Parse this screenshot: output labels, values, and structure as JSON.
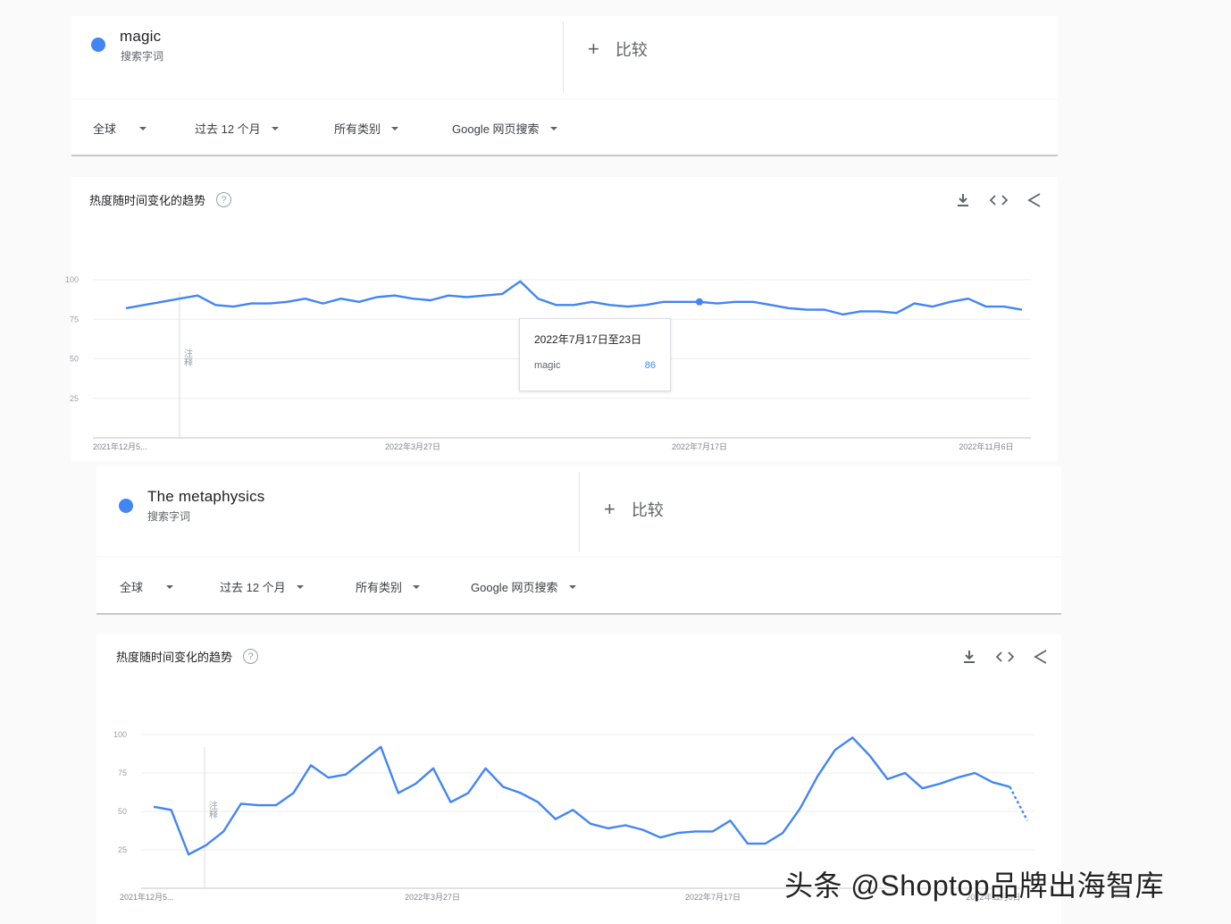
{
  "panels": [
    {
      "term": {
        "name": "magic",
        "sub": "搜索字词"
      },
      "compare": {
        "plus": "+",
        "label": "比较"
      },
      "filters": [
        {
          "label": "全球"
        },
        {
          "label": "过去 12 个月"
        },
        {
          "label": "所有类别"
        },
        {
          "label": "Google 网页搜索"
        }
      ],
      "chart_title": "热度随时间变化的趋势",
      "help": "?",
      "note": "注释",
      "tooltip": {
        "date": "2022年7月17日至23日",
        "term": "magic",
        "value": "86"
      }
    },
    {
      "term": {
        "name": "The metaphysics",
        "sub": "搜索字词"
      },
      "compare": {
        "plus": "+",
        "label": "比较"
      },
      "filters": [
        {
          "label": "全球"
        },
        {
          "label": "过去 12 个月"
        },
        {
          "label": "所有类别"
        },
        {
          "label": "Google 网页搜索"
        }
      ],
      "chart_title": "热度随时间变化的趋势",
      "help": "?",
      "note": "注释"
    }
  ],
  "chart_data": [
    {
      "type": "line",
      "series": [
        {
          "name": "magic",
          "values": [
            82,
            84,
            86,
            88,
            90,
            84,
            83,
            85,
            85,
            86,
            88,
            85,
            88,
            86,
            89,
            90,
            88,
            87,
            90,
            89,
            90,
            91,
            99,
            88,
            84,
            84,
            86,
            84,
            83,
            84,
            86,
            86,
            86,
            85,
            86,
            86,
            84,
            82,
            81,
            81,
            78,
            80,
            80,
            79,
            85,
            83,
            86,
            88,
            83,
            83,
            81
          ]
        }
      ],
      "yticks": [
        "100",
        "75",
        "50",
        "25"
      ],
      "ylim": [
        0,
        100
      ],
      "xticks": [
        "2021年12月5...",
        "2022年3月27日",
        "2022年7月17日",
        "2022年11月6日"
      ],
      "highlight_index": 32,
      "color": "#4285f4",
      "grid": true
    },
    {
      "type": "line",
      "series": [
        {
          "name": "The metaphysics",
          "values": [
            53,
            51,
            22,
            28,
            37,
            55,
            54,
            54,
            62,
            80,
            72,
            74,
            83,
            92,
            62,
            68,
            78,
            56,
            62,
            78,
            66,
            62,
            56,
            45,
            51,
            42,
            39,
            41,
            38,
            33,
            36,
            37,
            37,
            44,
            29,
            29,
            36,
            52,
            73,
            90,
            98,
            86,
            71,
            75,
            65,
            68,
            72,
            75,
            69,
            66,
            44
          ]
        }
      ],
      "yticks": [
        "100",
        "75",
        "50",
        "25"
      ],
      "ylim": [
        0,
        100
      ],
      "xticks": [
        "2021年12月5...",
        "2022年3月27日",
        "2022年7月17日",
        "2022年11月6日"
      ],
      "partial_last": true,
      "color": "#4285f4",
      "grid": true
    }
  ],
  "watermark": "头条 @Shoptop品牌出海智库"
}
